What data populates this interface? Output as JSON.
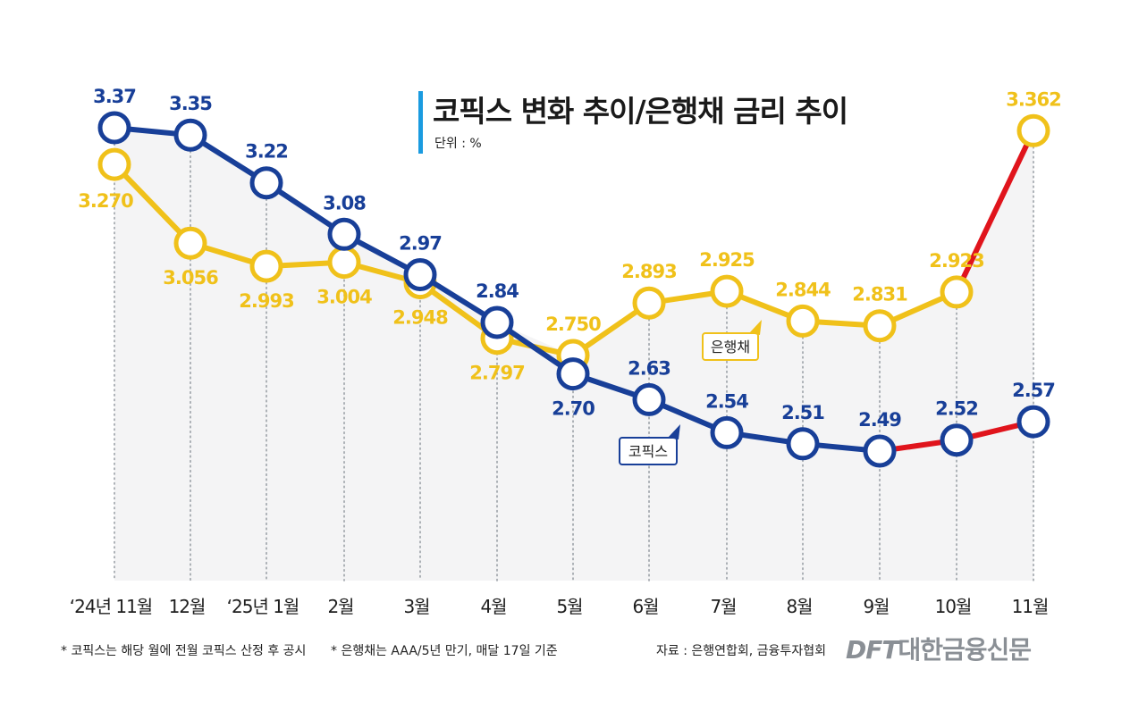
{
  "title": "코픽스 변화 추이/은행채 금리 추이",
  "unit": "단위 : %",
  "footnote_left": "* 코픽스는 해당 월에 전월 코픽스 산정 후 공시",
  "footnote_mid": "* 은행채는 AAA/5년 만기, 매달 17일 기준",
  "source": "자료 : 은행연합회, 금융투자협회",
  "logo_latin": "DFT",
  "logo_korean": "대한금융신문",
  "chart_data": {
    "type": "line",
    "categories": [
      "‘24년 11월",
      "12월",
      "‘25년 1월",
      "2월",
      "3월",
      "4월",
      "5월",
      "6월",
      "7월",
      "8월",
      "9월",
      "10월",
      "11월"
    ],
    "ylim": [
      2.2,
      3.45
    ],
    "grid": true,
    "series": [
      {
        "name": "코픽스",
        "color": "#183f98",
        "values": [
          3.37,
          3.35,
          3.22,
          3.08,
          2.97,
          2.84,
          2.7,
          2.63,
          2.54,
          2.51,
          2.49,
          2.52,
          2.57
        ],
        "labels": [
          "3.37",
          "3.35",
          "3.22",
          "3.08",
          "2.97",
          "2.84",
          "2.70",
          "2.63",
          "2.54",
          "2.51",
          "2.49",
          "2.52",
          "2.57"
        ],
        "highlight_from_index": 10
      },
      {
        "name": "은행채",
        "color": "#f0c11a",
        "values": [
          3.27,
          3.056,
          2.993,
          3.004,
          2.948,
          2.797,
          2.75,
          2.893,
          2.925,
          2.844,
          2.831,
          2.923,
          3.362
        ],
        "labels": [
          "3.270",
          "3.056",
          "2.993",
          "3.004",
          "2.948",
          "2.797",
          "2.750",
          "2.893",
          "2.925",
          "2.844",
          "2.831",
          "2.923",
          "3.362"
        ],
        "highlight_from_index": 11
      }
    ],
    "highlight_color": "#e0141c"
  }
}
